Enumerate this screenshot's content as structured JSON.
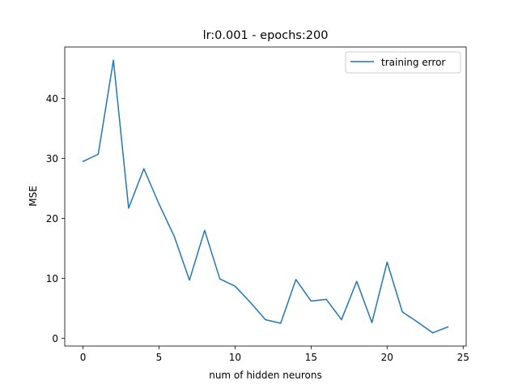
{
  "chart_data": {
    "type": "line",
    "title": "lr:0.001 - epochs:200",
    "xlabel": "num of hidden neurons",
    "ylabel": "MSE",
    "xlim": [
      -1.2,
      25.2
    ],
    "ylim": [
      -1.3,
      48.6
    ],
    "xticks": [
      0,
      5,
      10,
      15,
      20,
      25
    ],
    "yticks": [
      0,
      10,
      20,
      30,
      40
    ],
    "grid": false,
    "legend_position": "top-right",
    "series": [
      {
        "name": "training error",
        "color": "#1f77b4",
        "x": [
          0,
          1,
          2,
          3,
          4,
          5,
          6,
          7,
          8,
          9,
          10,
          11,
          12,
          13,
          14,
          15,
          16,
          17,
          18,
          19,
          20,
          21,
          22,
          23,
          24
        ],
        "y": [
          29.5,
          30.7,
          46.4,
          21.7,
          28.3,
          22.4,
          17.0,
          9.7,
          18.0,
          9.9,
          8.7,
          6.0,
          3.1,
          2.5,
          9.8,
          6.2,
          6.5,
          3.1,
          9.5,
          2.6,
          12.7,
          4.4,
          2.7,
          0.9,
          1.9
        ]
      }
    ]
  }
}
